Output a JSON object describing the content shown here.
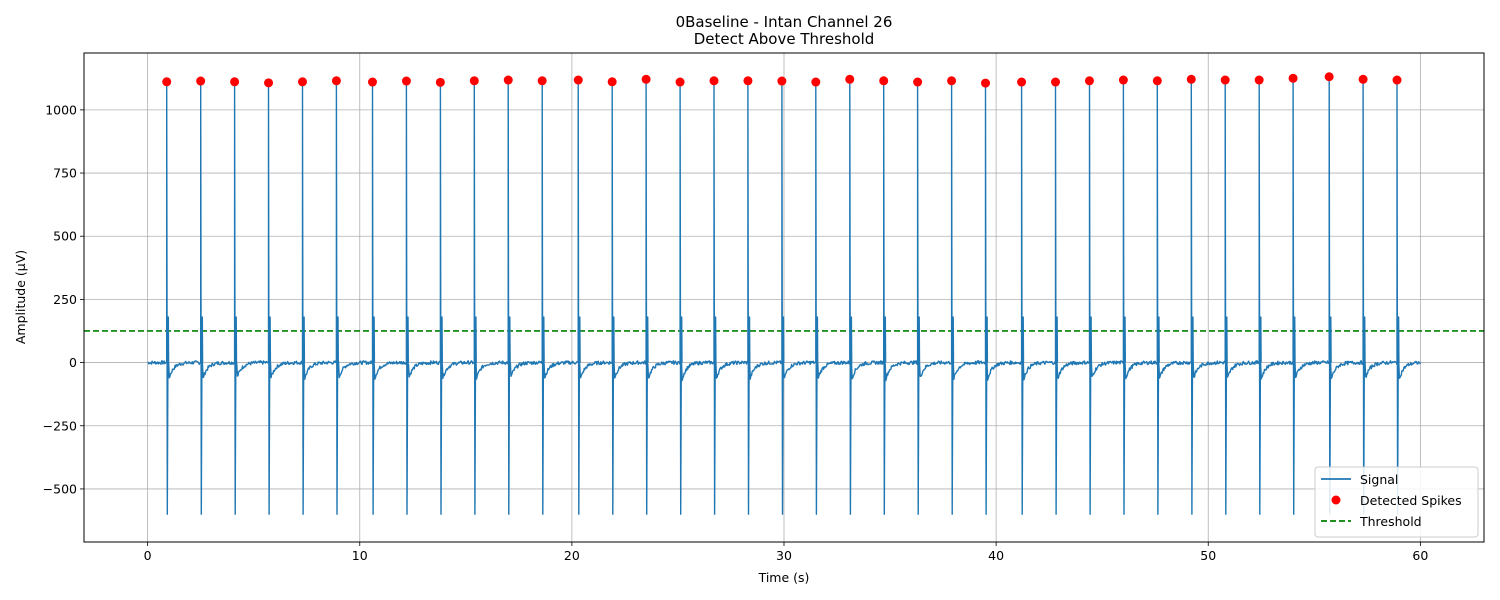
{
  "chart_data": {
    "type": "line",
    "title": "0Baseline - Intan Channel 26",
    "subtitle": "Detect Above Threshold",
    "xlabel": "Time (s)",
    "ylabel": "Amplitude (µV)",
    "xlim": [
      -3,
      63
    ],
    "ylim": [
      -710,
      1225
    ],
    "grid": true,
    "legend_position": "lower-right",
    "xticks": [
      0,
      10,
      20,
      30,
      40,
      50,
      60
    ],
    "xtick_labels": [
      "0",
      "10",
      "20",
      "30",
      "40",
      "50",
      "60"
    ],
    "yticks": [
      -500,
      -250,
      0,
      250,
      500,
      750,
      1000
    ],
    "ytick_labels": [
      "−500",
      "−250",
      "0",
      "250",
      "500",
      "750",
      "1000"
    ],
    "signal": {
      "name": "Signal",
      "color": "#1f77b4",
      "t_start": 0,
      "t_end": 60,
      "baseline": 0,
      "spike_peak_approx": 1100,
      "spike_trough_approx": -600,
      "post_spike_undershoot_approx": -65
    },
    "detected_spikes": {
      "name": "Detected Spikes",
      "color": "#ff0000",
      "x": [
        0.9,
        2.5,
        4.1,
        5.7,
        7.3,
        8.9,
        10.6,
        12.2,
        13.8,
        15.4,
        17.0,
        18.6,
        20.3,
        21.9,
        23.5,
        25.1,
        26.7,
        28.3,
        29.9,
        31.5,
        33.1,
        34.7,
        36.3,
        37.9,
        39.5,
        41.2,
        42.8,
        44.4,
        46.0,
        47.6,
        49.2,
        50.8,
        52.4,
        54.0,
        55.7,
        57.3,
        58.9
      ],
      "y": [
        1111,
        1114,
        1111,
        1107,
        1111,
        1115,
        1110,
        1114,
        1109,
        1115,
        1118,
        1115,
        1118,
        1111,
        1121,
        1110,
        1115,
        1115,
        1114,
        1110,
        1121,
        1115,
        1110,
        1115,
        1106,
        1110,
        1110,
        1115,
        1118,
        1115,
        1121,
        1118,
        1118,
        1125,
        1131,
        1121,
        1118
      ]
    },
    "threshold": {
      "name": "Threshold",
      "color": "#008000",
      "value": 125
    }
  }
}
